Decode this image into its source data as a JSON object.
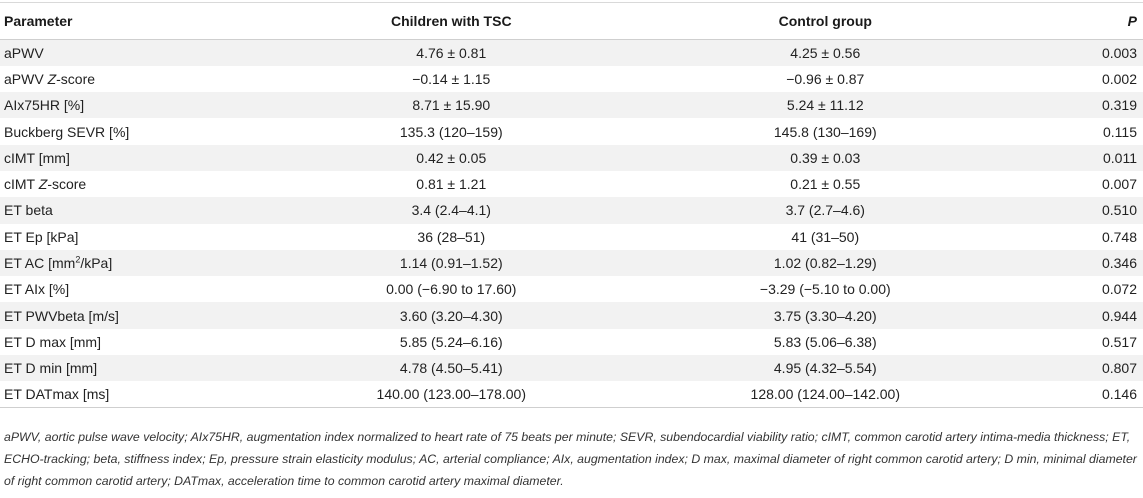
{
  "table": {
    "headers": {
      "parameter": "Parameter",
      "tsc": "Children with TSC",
      "control": "Control group",
      "p": "P"
    },
    "rows": [
      {
        "param_pre": "aPWV",
        "param_it": "",
        "param_post": "",
        "param_sup": "",
        "param_tail": "",
        "tsc": "4.76 ± 0.81",
        "control": "4.25 ± 0.56",
        "p": "0.003"
      },
      {
        "param_pre": "aPWV ",
        "param_it": "Z",
        "param_post": "-score",
        "param_sup": "",
        "param_tail": "",
        "tsc": "−0.14 ± 1.15",
        "control": "−0.96 ± 0.87",
        "p": "0.002"
      },
      {
        "param_pre": "AIx75HR [%]",
        "param_it": "",
        "param_post": "",
        "param_sup": "",
        "param_tail": "",
        "tsc": "8.71 ± 15.90",
        "control": "5.24 ± 11.12",
        "p": "0.319"
      },
      {
        "param_pre": "Buckberg SEVR [%]",
        "param_it": "",
        "param_post": "",
        "param_sup": "",
        "param_tail": "",
        "tsc": "135.3 (120–159)",
        "control": "145.8 (130–169)",
        "p": "0.115"
      },
      {
        "param_pre": "cIMT [mm]",
        "param_it": "",
        "param_post": "",
        "param_sup": "",
        "param_tail": "",
        "tsc": "0.42 ± 0.05",
        "control": "0.39 ± 0.03",
        "p": "0.011"
      },
      {
        "param_pre": "cIMT ",
        "param_it": "Z",
        "param_post": "-score",
        "param_sup": "",
        "param_tail": "",
        "tsc": "0.81 ± 1.21",
        "control": "0.21 ± 0.55",
        "p": "0.007"
      },
      {
        "param_pre": "ET beta",
        "param_it": "",
        "param_post": "",
        "param_sup": "",
        "param_tail": "",
        "tsc": "3.4 (2.4–4.1)",
        "control": "3.7 (2.7–4.6)",
        "p": "0.510"
      },
      {
        "param_pre": "ET Ep [kPa]",
        "param_it": "",
        "param_post": "",
        "param_sup": "",
        "param_tail": "",
        "tsc": "36 (28–51)",
        "control": "41 (31–50)",
        "p": "0.748"
      },
      {
        "param_pre": "ET AC [mm",
        "param_it": "",
        "param_post": "",
        "param_sup": "2",
        "param_tail": "/kPa]",
        "tsc": "1.14 (0.91–1.52)",
        "control": "1.02 (0.82–1.29)",
        "p": "0.346"
      },
      {
        "param_pre": "ET AIx [%]",
        "param_it": "",
        "param_post": "",
        "param_sup": "",
        "param_tail": "",
        "tsc": "0.00 (−6.90 to 17.60)",
        "control": "−3.29 (−5.10 to 0.00)",
        "p": "0.072"
      },
      {
        "param_pre": "ET PWVbeta [m/s]",
        "param_it": "",
        "param_post": "",
        "param_sup": "",
        "param_tail": "",
        "tsc": "3.60 (3.20–4.30)",
        "control": "3.75 (3.30–4.20)",
        "p": "0.944"
      },
      {
        "param_pre": "ET D max [mm]",
        "param_it": "",
        "param_post": "",
        "param_sup": "",
        "param_tail": "",
        "tsc": "5.85 (5.24–6.16)",
        "control": "5.83 (5.06–6.38)",
        "p": "0.517"
      },
      {
        "param_pre": "ET D min [mm]",
        "param_it": "",
        "param_post": "",
        "param_sup": "",
        "param_tail": "",
        "tsc": "4.78 (4.50–5.41)",
        "control": "4.95 (4.32–5.54)",
        "p": "0.807"
      },
      {
        "param_pre": "ET DATmax [ms]",
        "param_it": "",
        "param_post": "",
        "param_sup": "",
        "param_tail": "",
        "tsc": "140.00 (123.00–178.00)",
        "control": "128.00 (124.00–142.00)",
        "p": "0.146"
      }
    ]
  },
  "footnote": "aPWV, aortic pulse wave velocity; AIx75HR, augmentation index normalized to heart rate of 75 beats per minute; SEVR, subendocardial viability ratio; cIMT, common carotid artery intima-media thickness; ET, ECHO-tracking; beta, stiffness index; Ep, pressure strain elasticity modulus; AC, arterial compliance; AIx, augmentation index; D max, maximal diameter of right common carotid artery; D min, minimal diameter of right common carotid artery; DATmax, acceleration time to common carotid artery maximal diameter."
}
